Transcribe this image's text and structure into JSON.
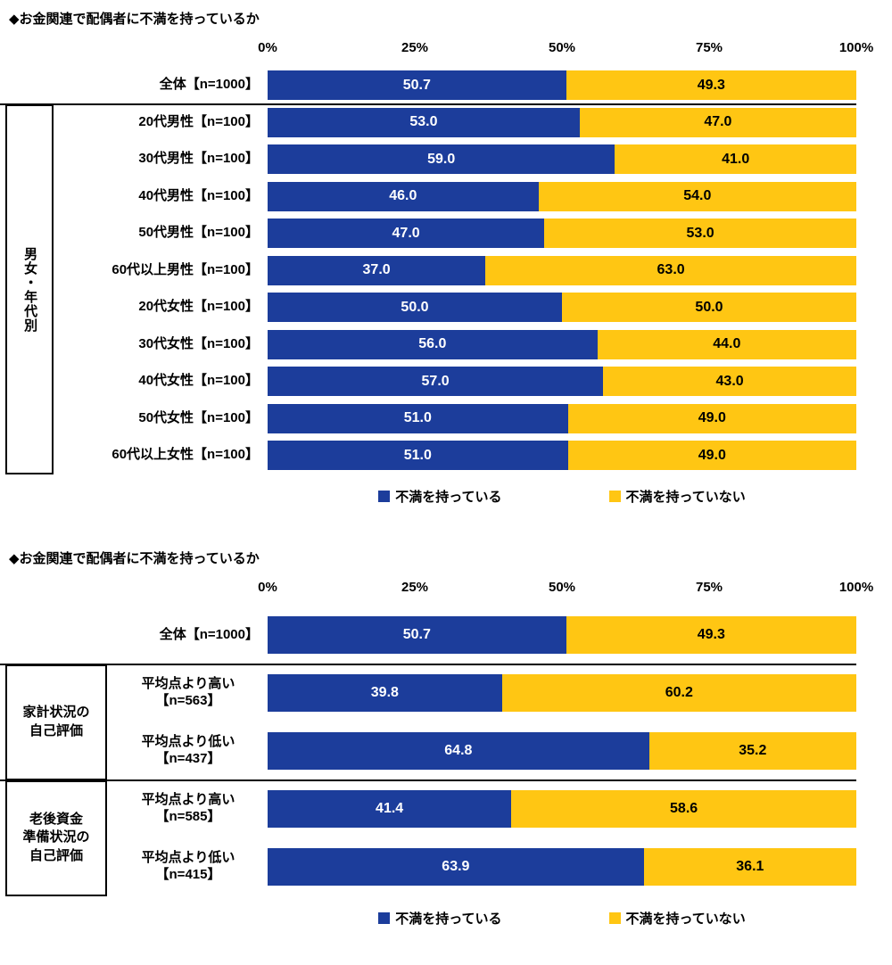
{
  "colors": {
    "series": [
      "#1C3D9B",
      "#FFC613"
    ],
    "value_label_on_blue": "#FFFFFF",
    "value_label_on_yellow": "#000000",
    "divider": "#000000",
    "text": "#000000",
    "background": "#FFFFFF"
  },
  "chart_data": [
    {
      "type": "bar",
      "stacked": true,
      "orientation": "horizontal",
      "title": "◆お金関連で配偶者に不満を持っているか",
      "x_ticks": [
        "0%",
        "25%",
        "50%",
        "75%",
        "100%"
      ],
      "xlim": [
        0,
        100
      ],
      "grid": false,
      "legend_position": "bottom",
      "legend": [
        "不満を持っている",
        "不満を持っていない"
      ],
      "series_names": [
        "不満を持っている",
        "不満を持っていない"
      ],
      "rows": [
        {
          "label_lines": [
            "全体【n=1000】"
          ],
          "values": [
            50.7,
            49.3
          ]
        },
        {
          "label_lines": [
            "20代男性【n=100】"
          ],
          "values": [
            53.0,
            47.0
          ]
        },
        {
          "label_lines": [
            "30代男性【n=100】"
          ],
          "values": [
            59.0,
            41.0
          ]
        },
        {
          "label_lines": [
            "40代男性【n=100】"
          ],
          "values": [
            46.0,
            54.0
          ]
        },
        {
          "label_lines": [
            "50代男性【n=100】"
          ],
          "values": [
            47.0,
            53.0
          ]
        },
        {
          "label_lines": [
            "60代以上男性【n=100】"
          ],
          "values": [
            37.0,
            63.0
          ]
        },
        {
          "label_lines": [
            "20代女性【n=100】"
          ],
          "values": [
            50.0,
            50.0
          ]
        },
        {
          "label_lines": [
            "30代女性【n=100】"
          ],
          "values": [
            56.0,
            44.0
          ]
        },
        {
          "label_lines": [
            "40代女性【n=100】"
          ],
          "values": [
            57.0,
            43.0
          ]
        },
        {
          "label_lines": [
            "50代女性【n=100】"
          ],
          "values": [
            51.0,
            49.0
          ]
        },
        {
          "label_lines": [
            "60代以上女性【n=100】"
          ],
          "values": [
            51.0,
            49.0
          ]
        }
      ],
      "groups": [
        {
          "label_lines": [
            "男女・年代別"
          ],
          "orientation": "vertical",
          "from_row": 1,
          "to_row": 10
        }
      ],
      "dividers_before_rows": [
        1
      ]
    },
    {
      "type": "bar",
      "stacked": true,
      "orientation": "horizontal",
      "title": "◆お金関連で配偶者に不満を持っているか",
      "x_ticks": [
        "0%",
        "25%",
        "50%",
        "75%",
        "100%"
      ],
      "xlim": [
        0,
        100
      ],
      "grid": false,
      "legend_position": "bottom",
      "legend": [
        "不満を持っている",
        "不満を持っていない"
      ],
      "series_names": [
        "不満を持っている",
        "不満を持っていない"
      ],
      "rows": [
        {
          "label_lines": [
            "全体【n=1000】"
          ],
          "values": [
            50.7,
            49.3
          ]
        },
        {
          "label_lines": [
            "平均点より高い",
            "【n=563】"
          ],
          "values": [
            39.8,
            60.2
          ],
          "centered": true
        },
        {
          "label_lines": [
            "平均点より低い",
            "【n=437】"
          ],
          "values": [
            64.8,
            35.2
          ],
          "centered": true
        },
        {
          "label_lines": [
            "平均点より高い",
            "【n=585】"
          ],
          "values": [
            41.4,
            58.6
          ],
          "centered": true
        },
        {
          "label_lines": [
            "平均点より低い",
            "【n=415】"
          ],
          "values": [
            63.9,
            36.1
          ],
          "centered": true
        }
      ],
      "groups": [
        {
          "label_lines": [
            "家計状況の",
            "自己評価"
          ],
          "orientation": "horizontal",
          "from_row": 1,
          "to_row": 2
        },
        {
          "label_lines": [
            "老後資金",
            "準備状況の",
            "自己評価"
          ],
          "orientation": "horizontal",
          "from_row": 3,
          "to_row": 4
        }
      ],
      "dividers_before_rows": [
        1,
        3
      ]
    }
  ]
}
